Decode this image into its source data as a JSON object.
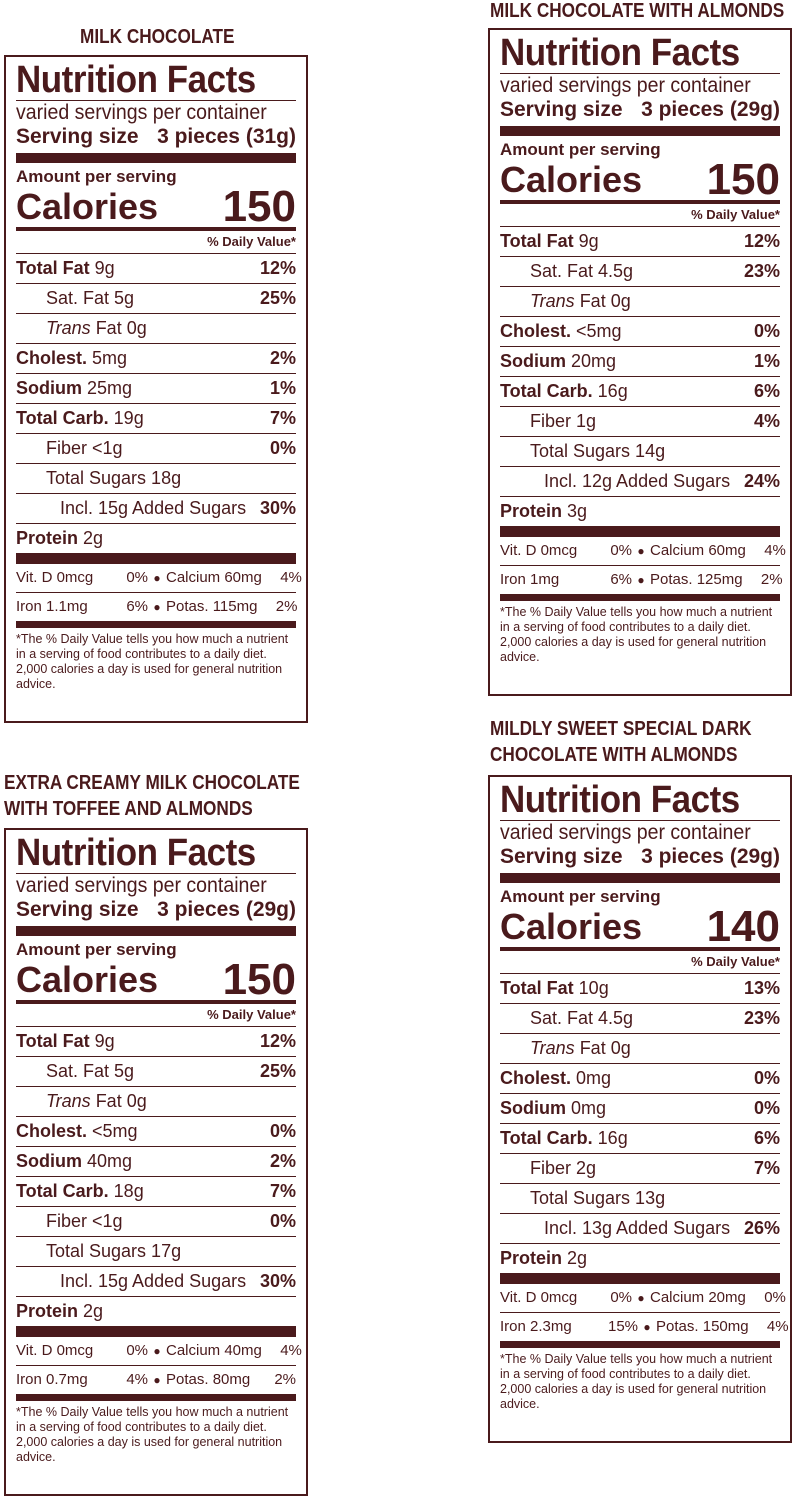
{
  "labels": [
    {
      "title_lines": [
        "MILK CHOCOLATE"
      ],
      "heading": "Nutrition Facts",
      "servings": "varied servings per container",
      "serving_size_label": "Serving size",
      "serving_size_value": "3 pieces (31g)",
      "amount_per_serving": "Amount per serving",
      "calories_label": "Calories",
      "calories_value": "150",
      "dv_heading": "% Daily Value*",
      "nutrients": [
        {
          "bold": "Total Fat",
          "amount": " 9g",
          "pct": "12%",
          "indent": 0
        },
        {
          "bold": "",
          "amount": "Sat. Fat 5g",
          "pct": "25%",
          "indent": 1
        },
        {
          "bold": "",
          "italic": "Trans",
          "amount": " Fat 0g",
          "pct": "",
          "indent": 1
        },
        {
          "bold": "Cholest.",
          "amount": " 5mg",
          "pct": "2%",
          "indent": 0
        },
        {
          "bold": "Sodium",
          "amount": " 25mg",
          "pct": "1%",
          "indent": 0
        },
        {
          "bold": "Total Carb.",
          "amount": " 19g",
          "pct": "7%",
          "indent": 0
        },
        {
          "bold": "",
          "amount": "Fiber <1g",
          "pct": "0%",
          "indent": 1
        },
        {
          "bold": "",
          "amount": "Total Sugars 18g",
          "pct": "",
          "indent": 1
        },
        {
          "bold": "",
          "amount": "Incl. 15g Added Sugars",
          "pct": "30%",
          "indent": 2
        },
        {
          "bold": "Protein",
          "amount": " 2g",
          "pct": "",
          "indent": 0
        }
      ],
      "vitamins": [
        [
          "Vit. D 0mcg",
          "0%",
          "Calcium 60mg",
          "4%"
        ],
        [
          "Iron 1.1mg",
          "6%",
          "Potas. 115mg",
          "2%"
        ]
      ],
      "footnote": "*The % Daily Value tells you how much a nutrient in a serving of food contributes to a daily diet. 2,000 calories a day is used for general nutrition advice."
    },
    {
      "title_lines": [
        "MILK CHOCOLATE WITH ALMONDS"
      ],
      "heading": "Nutrition Facts",
      "servings": "varied servings per container",
      "serving_size_label": "Serving size",
      "serving_size_value": "3 pieces (29g)",
      "amount_per_serving": "Amount per serving",
      "calories_label": "Calories",
      "calories_value": "150",
      "dv_heading": "% Daily Value*",
      "nutrients": [
        {
          "bold": "Total Fat",
          "amount": " 9g",
          "pct": "12%",
          "indent": 0
        },
        {
          "bold": "",
          "amount": "Sat. Fat 4.5g",
          "pct": "23%",
          "indent": 1
        },
        {
          "bold": "",
          "italic": "Trans",
          "amount": " Fat 0g",
          "pct": "",
          "indent": 1
        },
        {
          "bold": "Cholest.",
          "amount": " <5mg",
          "pct": "0%",
          "indent": 0
        },
        {
          "bold": "Sodium",
          "amount": " 20mg",
          "pct": "1%",
          "indent": 0
        },
        {
          "bold": "Total Carb.",
          "amount": " 16g",
          "pct": "6%",
          "indent": 0
        },
        {
          "bold": "",
          "amount": "Fiber 1g",
          "pct": "4%",
          "indent": 1
        },
        {
          "bold": "",
          "amount": "Total Sugars 14g",
          "pct": "",
          "indent": 1
        },
        {
          "bold": "",
          "amount": "Incl. 12g Added Sugars",
          "pct": "24%",
          "indent": 2
        },
        {
          "bold": "Protein",
          "amount": " 3g",
          "pct": "",
          "indent": 0
        }
      ],
      "vitamins": [
        [
          "Vit. D 0mcg",
          "0%",
          "Calcium 60mg",
          "4%"
        ],
        [
          "Iron 1mg",
          "6%",
          "Potas. 125mg",
          "2%"
        ]
      ],
      "footnote": "*The % Daily Value tells you how much a nutrient in a serving of food contributes to a daily diet. 2,000 calories a day is used for general nutrition advice."
    },
    {
      "title_lines": [
        "EXTRA CREAMY MILK CHOCOLATE",
        "WITH TOFFEE AND ALMONDS"
      ],
      "heading": "Nutrition Facts",
      "servings": "varied servings per container",
      "serving_size_label": "Serving size",
      "serving_size_value": "3 pieces (29g)",
      "amount_per_serving": "Amount per serving",
      "calories_label": "Calories",
      "calories_value": "150",
      "dv_heading": "% Daily Value*",
      "nutrients": [
        {
          "bold": "Total Fat",
          "amount": " 9g",
          "pct": "12%",
          "indent": 0
        },
        {
          "bold": "",
          "amount": "Sat. Fat 5g",
          "pct": "25%",
          "indent": 1
        },
        {
          "bold": "",
          "italic": "Trans",
          "amount": " Fat 0g",
          "pct": "",
          "indent": 1
        },
        {
          "bold": "Cholest.",
          "amount": " <5mg",
          "pct": "0%",
          "indent": 0
        },
        {
          "bold": "Sodium",
          "amount": " 40mg",
          "pct": "2%",
          "indent": 0
        },
        {
          "bold": "Total Carb.",
          "amount": " 18g",
          "pct": "7%",
          "indent": 0
        },
        {
          "bold": "",
          "amount": "Fiber <1g",
          "pct": "0%",
          "indent": 1
        },
        {
          "bold": "",
          "amount": "Total Sugars 17g",
          "pct": "",
          "indent": 1
        },
        {
          "bold": "",
          "amount": "Incl. 15g Added Sugars",
          "pct": "30%",
          "indent": 2
        },
        {
          "bold": "Protein",
          "amount": " 2g",
          "pct": "",
          "indent": 0
        }
      ],
      "vitamins": [
        [
          "Vit. D 0mcg",
          "0%",
          "Calcium 40mg",
          "4%"
        ],
        [
          "Iron 0.7mg",
          "4%",
          "Potas. 80mg",
          "2%"
        ]
      ],
      "footnote": "*The % Daily Value tells you how much a nutrient in a serving of food contributes to a daily diet. 2,000 calories a day is used for general nutrition advice."
    },
    {
      "title_lines": [
        "MILDLY SWEET SPECIAL DARK",
        "CHOCOLATE WITH ALMONDS"
      ],
      "heading": "Nutrition Facts",
      "servings": "varied servings per container",
      "serving_size_label": "Serving size",
      "serving_size_value": "3 pieces (29g)",
      "amount_per_serving": "Amount per serving",
      "calories_label": "Calories",
      "calories_value": "140",
      "dv_heading": "% Daily Value*",
      "nutrients": [
        {
          "bold": "Total Fat",
          "amount": " 10g",
          "pct": "13%",
          "indent": 0
        },
        {
          "bold": "",
          "amount": "Sat. Fat 4.5g",
          "pct": "23%",
          "indent": 1
        },
        {
          "bold": "",
          "italic": "Trans",
          "amount": " Fat 0g",
          "pct": "",
          "indent": 1
        },
        {
          "bold": "Cholest.",
          "amount": " 0mg",
          "pct": "0%",
          "indent": 0
        },
        {
          "bold": "Sodium",
          "amount": " 0mg",
          "pct": "0%",
          "indent": 0
        },
        {
          "bold": "Total Carb.",
          "amount": " 16g",
          "pct": "6%",
          "indent": 0
        },
        {
          "bold": "",
          "amount": "Fiber 2g",
          "pct": "7%",
          "indent": 1
        },
        {
          "bold": "",
          "amount": "Total Sugars 13g",
          "pct": "",
          "indent": 1
        },
        {
          "bold": "",
          "amount": "Incl. 13g Added Sugars",
          "pct": "26%",
          "indent": 2
        },
        {
          "bold": "Protein",
          "amount": " 2g",
          "pct": "",
          "indent": 0
        }
      ],
      "vitamins": [
        [
          "Vit. D 0mcg",
          "0%",
          "Calcium 20mg",
          "0%"
        ],
        [
          "Iron 2.3mg",
          "15%",
          "Potas. 150mg",
          "4%"
        ]
      ],
      "footnote": "*The % Daily Value tells you how much a nutrient in a serving of food contributes to a daily diet. 2,000 calories a day is used for general nutrition advice."
    }
  ],
  "colors": {
    "ink": "#4a1a1c",
    "background": "#ffffff"
  }
}
